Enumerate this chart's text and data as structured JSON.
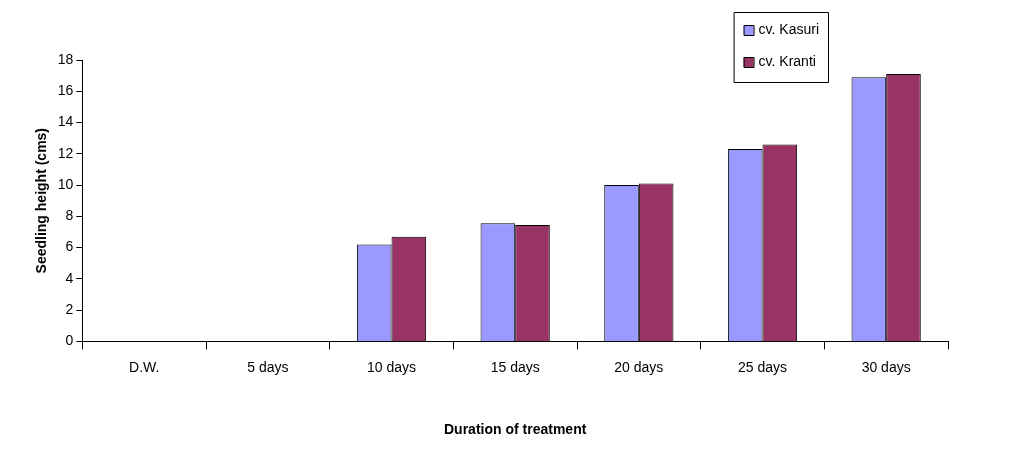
{
  "chart_data": {
    "type": "bar",
    "xlabel": "Duration of treatment",
    "ylabel": "Seedling height (cms)",
    "categories": [
      "D.W.",
      "5 days",
      "10 days",
      "15 days",
      "20 days",
      "25 days",
      "30 days"
    ],
    "series": [
      {
        "name": "cv. Kasuri",
        "color": "#9999ff",
        "values": [
          0,
          0,
          6.2,
          7.55,
          10.0,
          12.3,
          16.9
        ]
      },
      {
        "name": "cv. Kranti",
        "color": "#993366",
        "values": [
          0,
          0,
          6.7,
          7.45,
          10.1,
          12.6,
          17.1
        ]
      }
    ],
    "ylim": [
      0,
      18
    ],
    "yticks": [
      0,
      2,
      4,
      6,
      8,
      10,
      12,
      14,
      16,
      18
    ],
    "grid": false,
    "legend": "top right"
  }
}
